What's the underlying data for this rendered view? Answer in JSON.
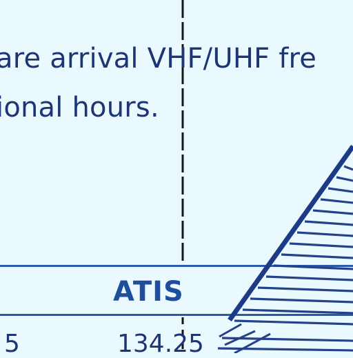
{
  "note": {
    "line1": "are arrival VHF/UHF fre",
    "line2": "ional hours."
  },
  "table": {
    "header": "ATIS",
    "row": {
      "left_value": "5",
      "frequency": "134.25"
    }
  },
  "colors": {
    "background": "#eaf9fd",
    "ink": "#18306e",
    "rule": "#2b5aa8",
    "hatch": "#24418a"
  },
  "icons": [
    "hatched-boundary-icon",
    "dashed-divider-icon"
  ]
}
